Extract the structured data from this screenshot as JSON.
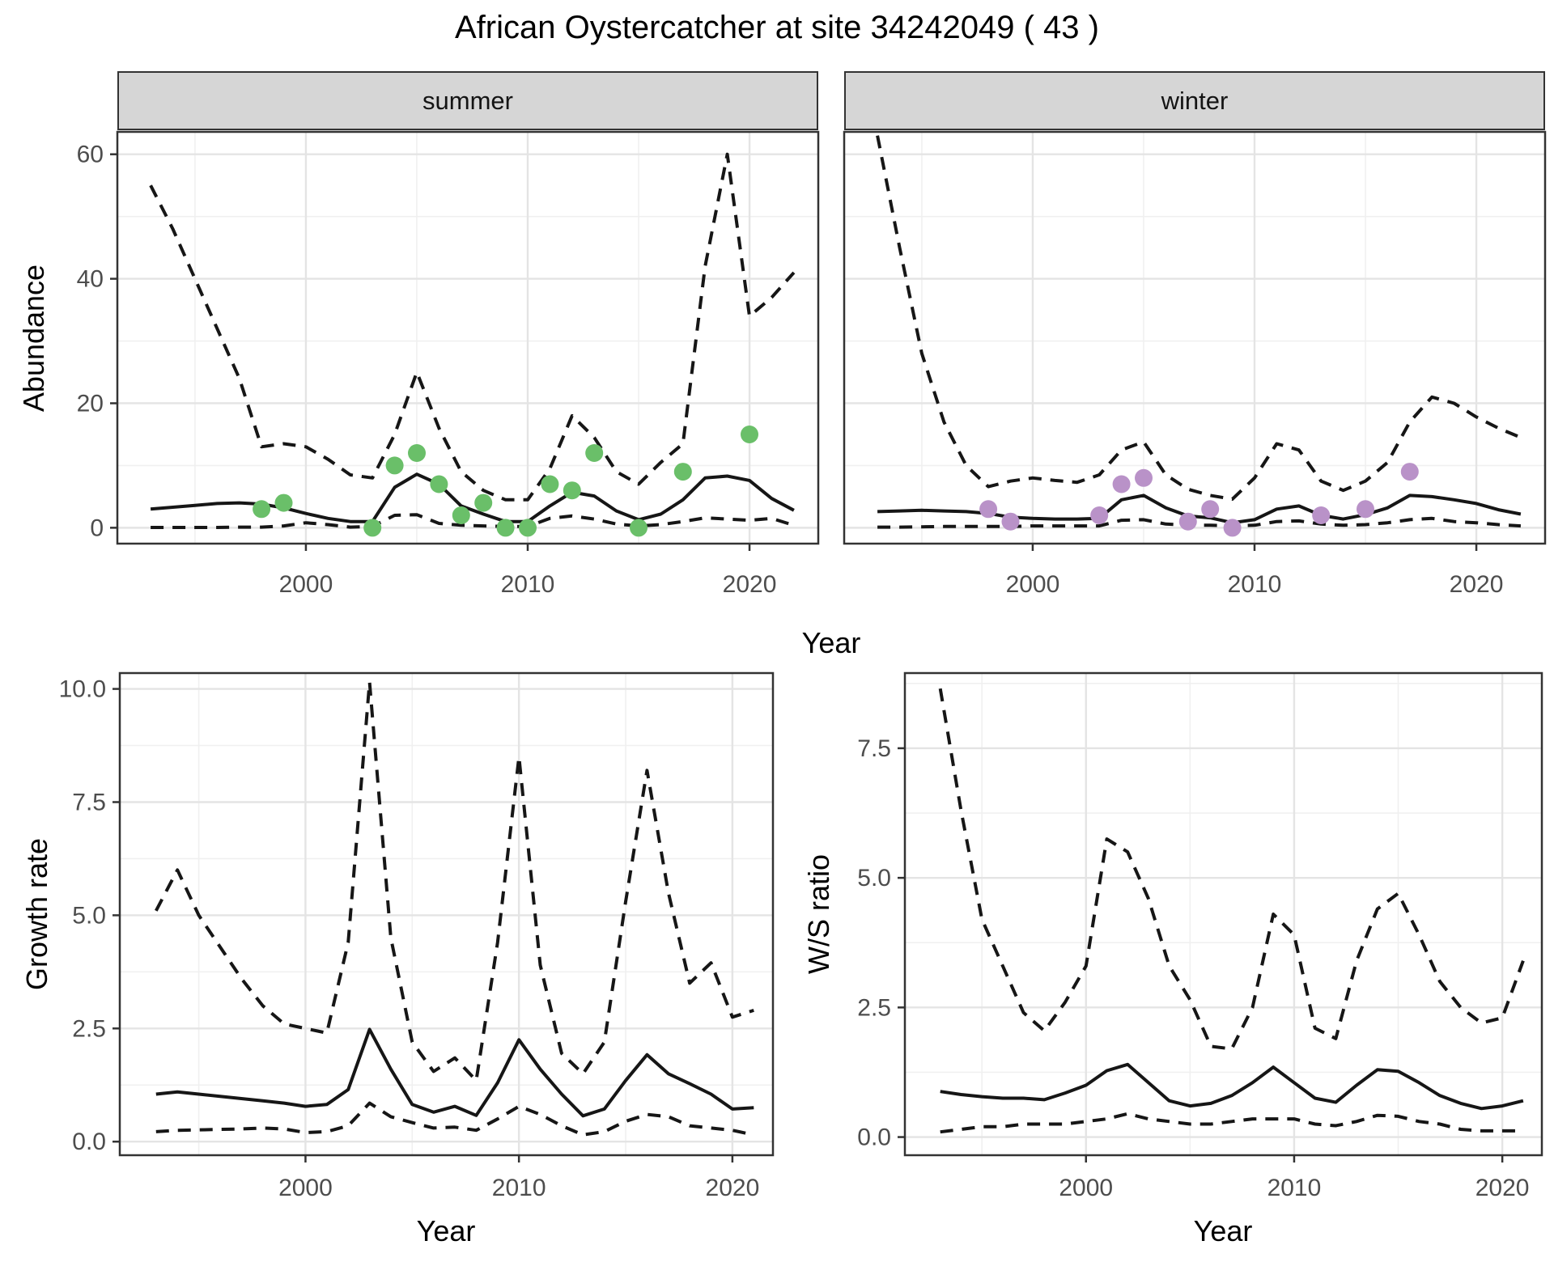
{
  "title": "African Oystercatcher at site 34242049 ( 43 )",
  "facets": [
    {
      "label": "summer"
    },
    {
      "label": "winter"
    }
  ],
  "axes": {
    "abundance_y": "Abundance",
    "top_x": "Year",
    "growth_y": "Growth rate",
    "growth_x": "Year",
    "ws_y": "W/S ratio",
    "ws_x": "Year"
  },
  "colors": {
    "summer_points": "#6abf69",
    "winter_points": "#b992c8",
    "line": "#161616",
    "strip_bg": "#d6d6d6",
    "panel_border": "#333333",
    "grid_major": "#e4e4e4",
    "grid_minor": "#f0f0f0",
    "tick_text": "#4d4d4d"
  },
  "chart_data": [
    {
      "id": "abundance-summer",
      "type": "line",
      "facet": "summer",
      "title": "African Oystercatcher at site 34242049 ( 43 )",
      "xlabel": "Year",
      "ylabel": "Abundance",
      "xlim": [
        1991.5,
        2023.1
      ],
      "ylim": [
        -2.55,
        63.6
      ],
      "xticks": {
        "values": [
          2000,
          2010,
          2020
        ],
        "labels": [
          "2000",
          "2010",
          "2020"
        ]
      },
      "yticks": {
        "values": [
          0,
          20,
          40,
          60
        ],
        "labels": [
          "0",
          "20",
          "40",
          "60"
        ]
      },
      "x_years": [
        1993,
        1994,
        1995,
        1996,
        1997,
        1998,
        1999,
        2000,
        2001,
        2002,
        2003,
        2004,
        2005,
        2006,
        2007,
        2008,
        2009,
        2010,
        2011,
        2012,
        2013,
        2014,
        2015,
        2016,
        2017,
        2018,
        2019,
        2020,
        2021,
        2022
      ],
      "series": [
        {
          "name": "median",
          "style": "solid",
          "values": [
            3.0,
            3.3,
            3.6,
            3.9,
            4.0,
            3.8,
            3.2,
            2.3,
            1.5,
            1.0,
            1.0,
            6.5,
            8.6,
            7.0,
            3.5,
            2.2,
            1.0,
            1.0,
            3.5,
            5.7,
            5.1,
            2.7,
            1.3,
            2.2,
            4.5,
            8.0,
            8.3,
            7.6,
            4.7,
            2.8
          ]
        },
        {
          "name": "lower95",
          "style": "dashed",
          "values": [
            0.05,
            0.05,
            0.05,
            0.05,
            0.1,
            0.1,
            0.3,
            0.8,
            0.5,
            0.1,
            0.2,
            2.0,
            2.1,
            0.7,
            0.4,
            0.3,
            0.2,
            0.2,
            1.5,
            1.9,
            1.4,
            0.6,
            0.3,
            0.5,
            1.0,
            1.6,
            1.4,
            1.2,
            1.5,
            0.4
          ]
        },
        {
          "name": "upper95",
          "style": "dashed",
          "values": [
            55,
            48,
            40,
            32,
            24,
            13,
            13.5,
            13,
            11,
            8.5,
            8,
            15,
            25,
            16,
            9,
            6,
            4.5,
            4.5,
            9.5,
            18,
            14.5,
            9,
            7,
            10.5,
            13.5,
            42,
            60,
            34,
            37,
            41
          ]
        }
      ],
      "observed_points": {
        "color": "#6abf69",
        "points": [
          [
            1998,
            3
          ],
          [
            1999,
            4
          ],
          [
            2003,
            0
          ],
          [
            2004,
            10
          ],
          [
            2005,
            12
          ],
          [
            2006,
            7
          ],
          [
            2007,
            2
          ],
          [
            2008,
            4
          ],
          [
            2009,
            0
          ],
          [
            2010,
            0
          ],
          [
            2011,
            7
          ],
          [
            2012,
            6
          ],
          [
            2013,
            12
          ],
          [
            2015,
            0
          ],
          [
            2017,
            9
          ],
          [
            2020,
            15
          ]
        ]
      }
    },
    {
      "id": "abundance-winter",
      "type": "line",
      "facet": "winter",
      "xlabel": "Year",
      "ylabel": "Abundance",
      "xlim": [
        1991.5,
        2023.1
      ],
      "ylim": [
        -2.55,
        63.6
      ],
      "xticks": {
        "values": [
          2000,
          2010,
          2020
        ],
        "labels": [
          "2000",
          "2010",
          "2020"
        ]
      },
      "yticks": {
        "values": [
          0,
          20,
          40,
          60
        ],
        "labels": [
          "0",
          "20",
          "40",
          "60"
        ]
      },
      "x_years": [
        1993,
        1994,
        1995,
        1996,
        1997,
        1998,
        1999,
        2000,
        2001,
        2002,
        2003,
        2004,
        2005,
        2006,
        2007,
        2008,
        2009,
        2010,
        2011,
        2012,
        2013,
        2014,
        2015,
        2016,
        2017,
        2018,
        2019,
        2020,
        2021,
        2022
      ],
      "series": [
        {
          "name": "median",
          "style": "solid",
          "values": [
            2.6,
            2.7,
            2.8,
            2.7,
            2.6,
            2.3,
            1.7,
            1.5,
            1.4,
            1.4,
            1.5,
            4.5,
            5.2,
            3.2,
            1.9,
            1.6,
            0.8,
            1.3,
            3.0,
            3.5,
            2.0,
            1.4,
            2.1,
            3.2,
            5.2,
            5.0,
            4.5,
            3.9,
            2.9,
            2.2
          ]
        },
        {
          "name": "lower95",
          "style": "dashed",
          "values": [
            0.1,
            0.1,
            0.15,
            0.2,
            0.2,
            0.2,
            0.2,
            0.3,
            0.3,
            0.3,
            0.3,
            1.2,
            1.3,
            0.6,
            0.4,
            0.4,
            0.3,
            0.4,
            1.0,
            1.1,
            0.6,
            0.4,
            0.5,
            0.8,
            1.3,
            1.5,
            1.0,
            0.8,
            0.5,
            0.3
          ]
        },
        {
          "name": "upper95",
          "style": "dashed",
          "values": [
            63,
            45,
            28,
            17,
            10,
            6.6,
            7.5,
            8,
            7.6,
            7.3,
            8.5,
            12.5,
            13.8,
            8.5,
            6.2,
            5.2,
            4.6,
            8,
            13.5,
            12.5,
            7.5,
            6,
            7.5,
            10.5,
            17,
            21,
            20,
            17.8,
            16,
            14.5
          ]
        }
      ],
      "observed_points": {
        "color": "#b992c8",
        "points": [
          [
            1998,
            3
          ],
          [
            1999,
            1
          ],
          [
            2003,
            2
          ],
          [
            2004,
            7
          ],
          [
            2005,
            8
          ],
          [
            2007,
            1
          ],
          [
            2008,
            3
          ],
          [
            2009,
            0
          ],
          [
            2013,
            2
          ],
          [
            2015,
            3
          ],
          [
            2017,
            9
          ]
        ]
      }
    },
    {
      "id": "growth-rate",
      "type": "line",
      "xlabel": "Year",
      "ylabel": "Growth rate",
      "xlim": [
        1991.3,
        2021.9
      ],
      "ylim": [
        -0.3,
        10.35
      ],
      "xticks": {
        "values": [
          2000,
          2010,
          2020
        ],
        "labels": [
          "2000",
          "2010",
          "2020"
        ]
      },
      "yticks": {
        "values": [
          0,
          2.5,
          5,
          7.5,
          10
        ],
        "labels": [
          "0.0",
          "2.5",
          "5.0",
          "7.5",
          "10.0"
        ]
      },
      "x_years": [
        1993,
        1994,
        1995,
        1996,
        1997,
        1998,
        1999,
        2000,
        2001,
        2002,
        2003,
        2004,
        2005,
        2006,
        2007,
        2008,
        2009,
        2010,
        2011,
        2012,
        2013,
        2014,
        2015,
        2016,
        2017,
        2018,
        2019,
        2020,
        2021
      ],
      "series": [
        {
          "name": "median",
          "style": "solid",
          "values": [
            1.05,
            1.1,
            1.05,
            1.0,
            0.95,
            0.9,
            0.85,
            0.78,
            0.82,
            1.15,
            2.48,
            1.6,
            0.82,
            0.65,
            0.78,
            0.58,
            1.3,
            2.25,
            1.6,
            1.05,
            0.57,
            0.72,
            1.35,
            1.92,
            1.5,
            1.28,
            1.05,
            0.72,
            0.75
          ]
        },
        {
          "name": "lower95",
          "style": "dashed",
          "values": [
            0.22,
            0.25,
            0.26,
            0.27,
            0.28,
            0.3,
            0.28,
            0.2,
            0.22,
            0.35,
            0.85,
            0.55,
            0.42,
            0.3,
            0.32,
            0.25,
            0.5,
            0.78,
            0.6,
            0.35,
            0.15,
            0.22,
            0.45,
            0.6,
            0.55,
            0.35,
            0.3,
            0.25,
            0.15
          ]
        },
        {
          "name": "upper95",
          "style": "dashed",
          "values": [
            5.1,
            6.0,
            5.0,
            4.3,
            3.6,
            3.0,
            2.6,
            2.5,
            2.4,
            4.4,
            10.15,
            4.5,
            2.2,
            1.55,
            1.85,
            1.35,
            4.4,
            8.5,
            3.9,
            1.95,
            1.5,
            2.2,
            5.3,
            8.2,
            5.5,
            3.5,
            3.95,
            2.75,
            2.9
          ]
        }
      ]
    },
    {
      "id": "ws-ratio",
      "type": "line",
      "xlabel": "Year",
      "ylabel": "W/S ratio",
      "xlim": [
        1991.3,
        2021.9
      ],
      "ylim": [
        -0.35,
        8.95
      ],
      "xticks": {
        "values": [
          2000,
          2010,
          2020
        ],
        "labels": [
          "2000",
          "2010",
          "2020"
        ]
      },
      "yticks": {
        "values": [
          0,
          2.5,
          5,
          7.5
        ],
        "labels": [
          "0.0",
          "2.5",
          "5.0",
          "7.5"
        ]
      },
      "x_years": [
        1993,
        1994,
        1995,
        1996,
        1997,
        1998,
        1999,
        2000,
        2001,
        2002,
        2003,
        2004,
        2005,
        2006,
        2007,
        2008,
        2009,
        2010,
        2011,
        2012,
        2013,
        2014,
        2015,
        2016,
        2017,
        2018,
        2019,
        2020,
        2021
      ],
      "series": [
        {
          "name": "median",
          "style": "solid",
          "values": [
            0.88,
            0.82,
            0.78,
            0.75,
            0.75,
            0.72,
            0.85,
            1.0,
            1.28,
            1.4,
            1.05,
            0.7,
            0.6,
            0.65,
            0.8,
            1.05,
            1.35,
            1.05,
            0.75,
            0.67,
            1.0,
            1.3,
            1.27,
            1.05,
            0.8,
            0.65,
            0.55,
            0.6,
            0.7
          ]
        },
        {
          "name": "lower95",
          "style": "dashed",
          "values": [
            0.1,
            0.15,
            0.2,
            0.2,
            0.25,
            0.25,
            0.25,
            0.3,
            0.35,
            0.45,
            0.35,
            0.3,
            0.25,
            0.25,
            0.3,
            0.35,
            0.35,
            0.35,
            0.25,
            0.22,
            0.3,
            0.42,
            0.4,
            0.3,
            0.25,
            0.15,
            0.12,
            0.12,
            0.12
          ]
        },
        {
          "name": "upper95",
          "style": "dashed",
          "values": [
            8.65,
            6.3,
            4.2,
            3.3,
            2.4,
            2.05,
            2.6,
            3.3,
            5.75,
            5.5,
            4.6,
            3.3,
            2.65,
            1.75,
            1.7,
            2.5,
            4.3,
            3.9,
            2.1,
            1.9,
            3.4,
            4.4,
            4.7,
            3.9,
            3.0,
            2.5,
            2.2,
            2.3,
            3.4
          ]
        }
      ]
    }
  ]
}
